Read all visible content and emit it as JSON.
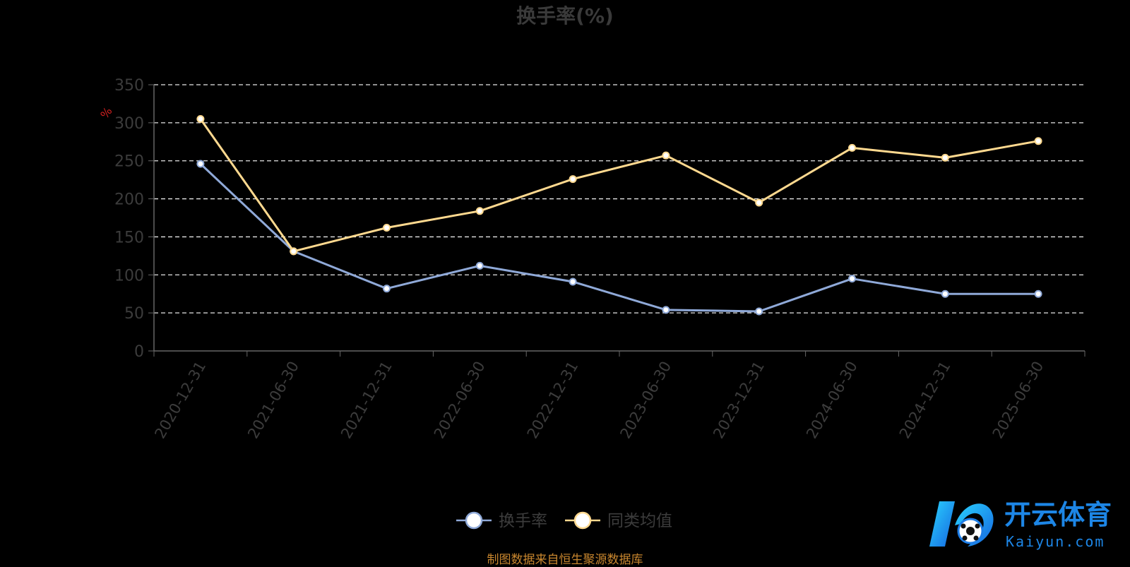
{
  "chart_data": {
    "type": "line",
    "title": "换手率(%)",
    "ylabel": "%",
    "ylim": [
      0,
      350
    ],
    "yticks": [
      0,
      50,
      100,
      150,
      200,
      250,
      300,
      350
    ],
    "grid": true,
    "legend_position": "bottom-center",
    "categories": [
      "2020-12-31",
      "2021-06-30",
      "2021-12-31",
      "2022-06-30",
      "2022-12-31",
      "2023-06-30",
      "2023-12-31",
      "2024-06-30",
      "2024-12-31",
      "2025-06-30"
    ],
    "series": [
      {
        "name": "换手率",
        "color": "#8fa9d8",
        "values": [
          246,
          131,
          82,
          112,
          91,
          54,
          52,
          95,
          75,
          75
        ]
      },
      {
        "name": "同类均值",
        "color": "#ffd98f",
        "values": [
          305,
          131,
          162,
          184,
          226,
          257,
          195,
          267,
          254,
          276
        ]
      }
    ]
  },
  "source_text": "制图数据来自恒生聚源数据库",
  "logo": {
    "brand": "开云体育",
    "domain": "Kaiyun.com"
  }
}
